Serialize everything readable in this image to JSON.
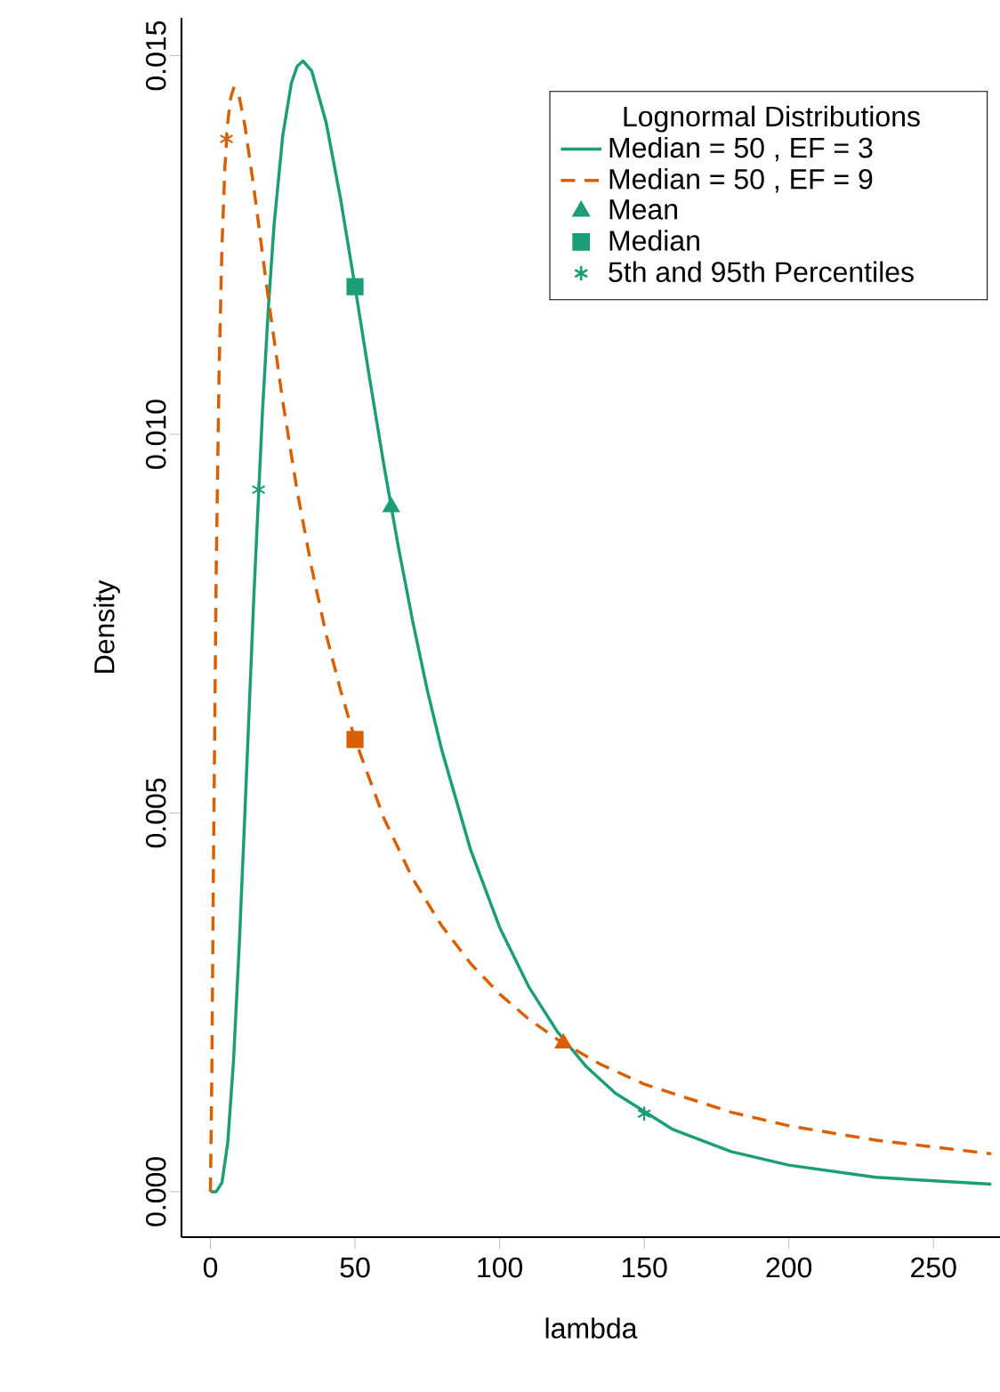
{
  "chart_data": {
    "type": "line",
    "xlabel": "lambda",
    "ylabel": "Density",
    "legend_title": "Lognormal Distributions",
    "legend": "top right",
    "xlim": [
      -10,
      273
    ],
    "ylim": [
      -0.0006,
      0.0155
    ],
    "xticks": [
      0,
      50,
      100,
      150,
      200,
      250
    ],
    "yticks": [
      {
        "value": 0,
        "label": "0.000"
      },
      {
        "value": 0.005,
        "label": "0.005"
      },
      {
        "value": 0.01,
        "label": "0.010"
      },
      {
        "value": 0.015,
        "label": "0.015"
      }
    ],
    "series": [
      {
        "name": "Median = 50 , EF = 3",
        "color": "#1b9e77",
        "line_style": "solid",
        "x": [
          0,
          2,
          4,
          6,
          8,
          10,
          12,
          15,
          18,
          20,
          22,
          25,
          28,
          30,
          32,
          35,
          40,
          45,
          50,
          55,
          60,
          65,
          70,
          75,
          80,
          90,
          100,
          110,
          120,
          130,
          140,
          160,
          180,
          200,
          230,
          270
        ],
        "values": [
          0,
          0,
          0.00012,
          0.00065,
          0.00173,
          0.00328,
          0.00507,
          0.00784,
          0.0103,
          0.01165,
          0.01276,
          0.01394,
          0.01464,
          0.01486,
          0.01493,
          0.0148,
          0.01412,
          0.01311,
          0.01195,
          0.01075,
          0.00959,
          0.00851,
          0.00752,
          0.00662,
          0.00583,
          0.00451,
          0.00349,
          0.00271,
          0.00211,
          0.00165,
          0.0013,
          0.00082,
          0.00053,
          0.00035,
          0.00019,
          0.0001
        ]
      },
      {
        "name": "Median = 50 , EF = 9",
        "color": "#d95f02",
        "line_style": "dashed",
        "x": [
          0,
          0.5,
          1,
          2,
          3,
          4,
          5,
          6,
          7,
          8,
          9,
          10,
          12,
          15,
          20,
          25,
          30,
          35,
          40,
          45,
          50,
          60,
          70,
          80,
          90,
          100,
          110,
          120,
          135,
          150,
          180,
          200,
          230,
          270
        ],
        "values": [
          0,
          0.00157,
          0.0041,
          0.00819,
          0.01083,
          0.01249,
          0.01352,
          0.01412,
          0.01444,
          0.01457,
          0.01456,
          0.01445,
          0.01406,
          0.01326,
          0.0118,
          0.01044,
          0.00925,
          0.00824,
          0.00736,
          0.00662,
          0.00597,
          0.00493,
          0.00413,
          0.00351,
          0.00301,
          0.00261,
          0.00228,
          0.00201,
          0.00168,
          0.00142,
          0.00105,
          0.00087,
          0.00068,
          0.0005
        ]
      },
      {
        "name": "Mean",
        "type": "scatter",
        "marker": "triangle",
        "x": [
          62.5,
          122
        ],
        "values": [
          0.00904,
          0.00196
        ],
        "colors": [
          "#1b9e77",
          "#d95f02"
        ]
      },
      {
        "name": "Median",
        "type": "scatter",
        "marker": "square",
        "x": [
          50,
          50
        ],
        "values": [
          0.01195,
          0.00597
        ],
        "colors": [
          "#1b9e77",
          "#d95f02"
        ]
      },
      {
        "name": "5th and 95th Percentiles",
        "type": "scatter",
        "marker": "cross",
        "x": [
          16.67,
          150,
          5.56
        ],
        "values": [
          0.00927,
          0.00103,
          0.0139
        ],
        "colors": [
          "#1b9e77",
          "#1b9e77",
          "#d95f02"
        ]
      }
    ]
  }
}
